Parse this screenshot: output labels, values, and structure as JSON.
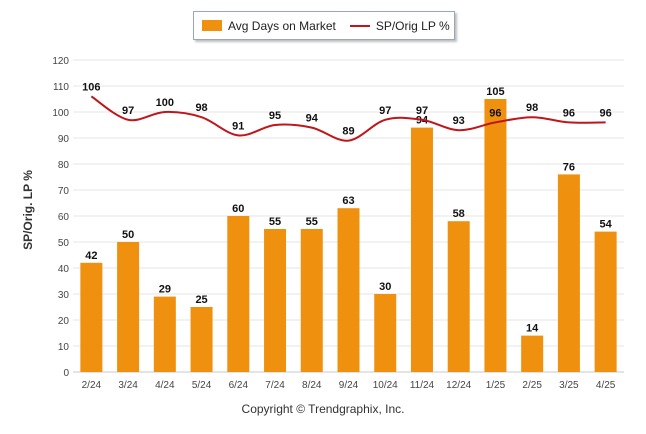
{
  "chart_data": {
    "type": "bar",
    "categories": [
      "2/24",
      "3/24",
      "4/24",
      "5/24",
      "6/24",
      "7/24",
      "8/24",
      "9/24",
      "10/24",
      "11/24",
      "12/24",
      "1/25",
      "2/25",
      "3/25",
      "4/25"
    ],
    "series": [
      {
        "name": "Avg Days on Market",
        "type": "bar",
        "color": "#f0900f",
        "values": [
          42,
          50,
          29,
          25,
          60,
          55,
          55,
          63,
          30,
          94,
          58,
          105,
          14,
          76,
          54
        ]
      },
      {
        "name": "SP/Orig LP %",
        "type": "line",
        "color": "#c0161b",
        "values": [
          106,
          97,
          100,
          98,
          91,
          95,
          94,
          89,
          97,
          97,
          93,
          96,
          98,
          96,
          96
        ]
      }
    ],
    "ylabel": "SP/Orig. LP %",
    "ylim": [
      0,
      120
    ],
    "yticks": [
      0,
      10,
      20,
      30,
      40,
      50,
      60,
      70,
      80,
      90,
      100,
      110,
      120
    ],
    "grid": true,
    "legend_position": "top-center"
  },
  "legend": {
    "bar_label": "Avg Days on Market",
    "line_label": "SP/Orig LP %"
  },
  "footer": "Copyright © Trendgraphix, Inc."
}
